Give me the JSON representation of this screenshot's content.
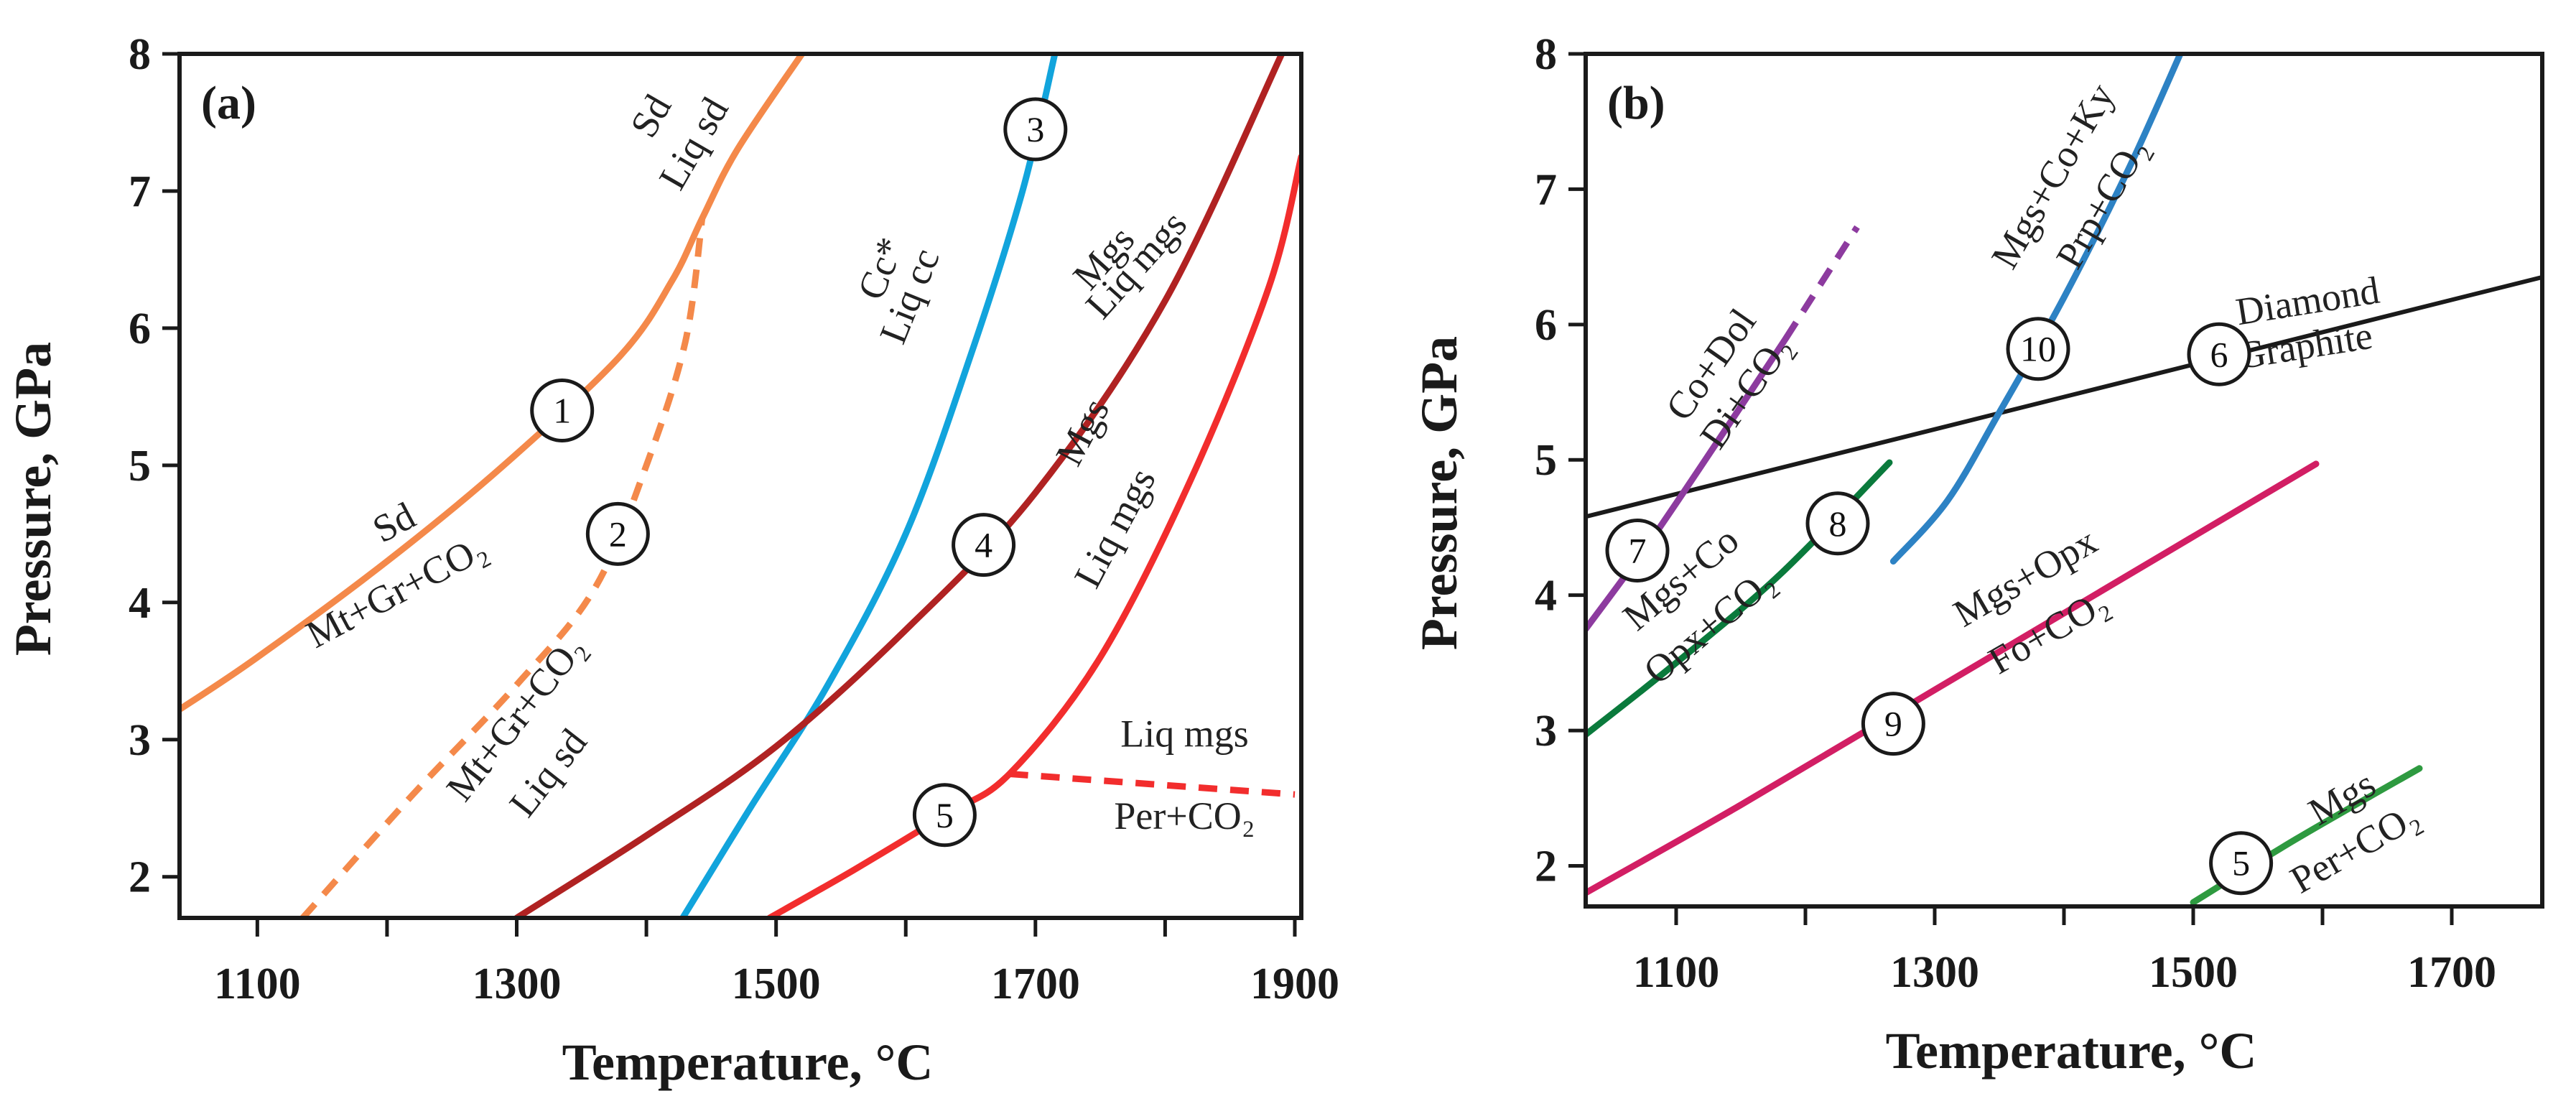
{
  "chart_data": [
    {
      "type": "line",
      "panel_label": "(a)",
      "xlabel": "Temperature, °C",
      "ylabel": "Pressure, GPa",
      "xlim": [
        1040,
        1905
      ],
      "ylim": [
        1.7,
        8
      ],
      "xticks": [
        1100,
        1300,
        1500,
        1700,
        1900
      ],
      "xticks_minor": [
        1200,
        1400,
        1600,
        1800
      ],
      "yticks": [
        2,
        3,
        4,
        5,
        6,
        7,
        8
      ],
      "grid": false,
      "series": [
        {
          "name": "Sd = Mt+Gr+CO2",
          "color": "#f4894a",
          "style": "solid",
          "points": [
            [
              1040,
              3.22
            ],
            [
              1100,
              3.6
            ],
            [
              1200,
              4.3
            ],
            [
              1290,
              5.0
            ],
            [
              1380,
              5.8
            ],
            [
              1420,
              6.35
            ],
            [
              1443,
              6.8
            ],
            [
              1470,
              7.3
            ],
            [
              1520,
              8.0
            ]
          ]
        },
        {
          "name": "Mt+Gr+CO2 = Liq sd",
          "color": "#f4894a",
          "style": "dashed",
          "points": [
            [
              1135,
              1.7
            ],
            [
              1220,
              2.6
            ],
            [
              1300,
              3.4
            ],
            [
              1360,
              4.1
            ],
            [
              1400,
              5.0
            ],
            [
              1430,
              5.9
            ],
            [
              1443,
              6.8
            ]
          ]
        },
        {
          "name": "Cc* = Liq cc",
          "color": "#12a4dc",
          "style": "solid",
          "points": [
            [
              1428,
              1.7
            ],
            [
              1480,
              2.5
            ],
            [
              1540,
              3.4
            ],
            [
              1600,
              4.5
            ],
            [
              1650,
              5.8
            ],
            [
              1690,
              7.0
            ],
            [
              1715,
              8.0
            ]
          ]
        },
        {
          "name": "Mgs = Liq mgs (4)",
          "color": "#b02222",
          "style": "solid",
          "points": [
            [
              1300,
              1.7
            ],
            [
              1400,
              2.3
            ],
            [
              1500,
              2.95
            ],
            [
              1600,
              3.8
            ],
            [
              1700,
              4.8
            ],
            [
              1800,
              6.2
            ],
            [
              1890,
              8.0
            ]
          ]
        },
        {
          "name": "Mgs = Liq mgs (5)",
          "color": "#f22d2d",
          "style": "solid",
          "points": [
            [
              1495,
              1.7
            ],
            [
              1560,
              2.05
            ],
            [
              1630,
              2.45
            ],
            [
              1680,
              2.75
            ],
            [
              1750,
              3.6
            ],
            [
              1820,
              4.9
            ],
            [
              1880,
              6.3
            ],
            [
              1905,
              7.25
            ]
          ]
        },
        {
          "name": "Liq mgs = Per+CO2",
          "color": "#f22d2d",
          "style": "dashed",
          "points": [
            [
              1680,
              2.75
            ],
            [
              1900,
              2.6
            ]
          ]
        }
      ],
      "labels": [
        {
          "text": "Sd",
          "x": 1210,
          "y": 4.5,
          "angle": -28
        },
        {
          "text": "Mt+Gr+CO₂",
          "x": 1212,
          "y": 4.0,
          "angle": -28
        },
        {
          "text": "Mt+Gr+CO₂",
          "x": 1307,
          "y": 3.1,
          "angle": -52
        },
        {
          "text": "Liq sd",
          "x": 1332,
          "y": 2.7,
          "angle": -52
        },
        {
          "text": "Sd",
          "x": 1412,
          "y": 7.5,
          "angle": -60
        },
        {
          "text": "Liq sd",
          "x": 1445,
          "y": 7.3,
          "angle": -60
        },
        {
          "text": "Cc*",
          "x": 1590,
          "y": 6.4,
          "angle": -68
        },
        {
          "text": "Liq cc",
          "x": 1612,
          "y": 6.2,
          "angle": -68
        },
        {
          "text": "Mgs",
          "x": 1760,
          "y": 6.45,
          "angle": -48
        },
        {
          "text": "Liq mgs",
          "x": 1785,
          "y": 6.4,
          "angle": -48
        },
        {
          "text": "Mgs",
          "x": 1745,
          "y": 5.2,
          "angle": -62
        },
        {
          "text": "Liq mgs",
          "x": 1770,
          "y": 4.5,
          "angle": -62
        },
        {
          "text": "Liq mgs",
          "x": 1815,
          "y": 2.95,
          "angle": 0
        },
        {
          "text": "Per+CO₂",
          "x": 1815,
          "y": 2.35,
          "angle": 0
        }
      ],
      "markers": [
        {
          "n": "1",
          "x": 1335,
          "y": 5.4
        },
        {
          "n": "2",
          "x": 1378,
          "y": 4.5
        },
        {
          "n": "3",
          "x": 1700,
          "y": 7.45
        },
        {
          "n": "4",
          "x": 1660,
          "y": 4.42
        },
        {
          "n": "5",
          "x": 1630,
          "y": 2.45
        }
      ]
    },
    {
      "type": "line",
      "panel_label": "(b)",
      "xlabel": "Temperature, °C",
      "ylabel": "Pressure, GPa",
      "xlim": [
        1030,
        1770
      ],
      "ylim": [
        1.7,
        8
      ],
      "xticks": [
        1100,
        1300,
        1500,
        1700
      ],
      "xticks_minor": [
        1200,
        1400,
        1600
      ],
      "yticks": [
        2,
        3,
        4,
        5,
        6,
        7,
        8
      ],
      "grid": false,
      "series": [
        {
          "name": "Diamond = Graphite",
          "color": "#1a1a1a",
          "style": "solid",
          "points": [
            [
              1030,
              4.58
            ],
            [
              1770,
              6.35
            ]
          ]
        },
        {
          "name": "Co+Dol = Di+CO2",
          "color": "#8d3b9f",
          "style": "solid",
          "points": [
            [
              1030,
              3.75
            ],
            [
              1080,
              4.4
            ],
            [
              1140,
              5.25
            ],
            [
              1185,
              5.9
            ]
          ]
        },
        {
          "name": "Co+Dol = Di+CO2 (extrapolated)",
          "color": "#8d3b9f",
          "style": "dashed",
          "points": [
            [
              1185,
              5.9
            ],
            [
              1240,
              6.72
            ]
          ]
        },
        {
          "name": "Mgs+Co = Opx+CO2",
          "color": "#0a7a3c",
          "style": "solid",
          "points": [
            [
              1030,
              2.97
            ],
            [
              1100,
              3.5
            ],
            [
              1180,
              4.15
            ],
            [
              1265,
              4.98
            ]
          ]
        },
        {
          "name": "Mgs+Opx = Fo+CO2",
          "color": "#d21e64",
          "style": "solid",
          "points": [
            [
              1030,
              1.8
            ],
            [
              1150,
              2.45
            ],
            [
              1300,
              3.3
            ],
            [
              1450,
              4.15
            ],
            [
              1595,
              4.97
            ]
          ]
        },
        {
          "name": "Mgs+Co+Ky = Prp+CO2",
          "color": "#2d82c4",
          "style": "solid",
          "points": [
            [
              1268,
              4.25
            ],
            [
              1310,
              4.7
            ],
            [
              1350,
              5.35
            ],
            [
              1400,
              6.2
            ],
            [
              1450,
              7.15
            ],
            [
              1490,
              8.0
            ]
          ]
        },
        {
          "name": "Mgs = Per+CO2",
          "color": "#2e9a40",
          "style": "solid",
          "points": [
            [
              1500,
              1.73
            ],
            [
              1580,
              2.2
            ],
            [
              1675,
              2.72
            ]
          ]
        }
      ],
      "labels": [
        {
          "text": "Diamond",
          "x": 1590,
          "y": 6.08,
          "angle": -9
        },
        {
          "text": "Graphite",
          "x": 1588,
          "y": 5.75,
          "angle": -9
        },
        {
          "text": "Co+Dol",
          "x": 1135,
          "y": 5.65,
          "angle": -55
        },
        {
          "text": "Di+CO₂",
          "x": 1162,
          "y": 5.45,
          "angle": -55
        },
        {
          "text": "Mgs+Co+Ky",
          "x": 1400,
          "y": 7.05,
          "angle": -60
        },
        {
          "text": "Prp+CO₂",
          "x": 1438,
          "y": 6.85,
          "angle": -60
        },
        {
          "text": "Mgs+Co",
          "x": 1110,
          "y": 4.05,
          "angle": -40
        },
        {
          "text": "Opx+CO₂",
          "x": 1132,
          "y": 3.7,
          "angle": -40
        },
        {
          "text": "Mgs+Opx",
          "x": 1375,
          "y": 4.05,
          "angle": -30
        },
        {
          "text": "Fo+CO₂",
          "x": 1393,
          "y": 3.65,
          "angle": -30
        },
        {
          "text": "Mgs",
          "x": 1620,
          "y": 2.42,
          "angle": -30
        },
        {
          "text": "Per+CO₂",
          "x": 1630,
          "y": 2.05,
          "angle": -30
        }
      ],
      "markers": [
        {
          "n": "6",
          "x": 1520,
          "y": 5.78
        },
        {
          "n": "7",
          "x": 1070,
          "y": 4.33
        },
        {
          "n": "8",
          "x": 1225,
          "y": 4.53
        },
        {
          "n": "9",
          "x": 1268,
          "y": 3.05
        },
        {
          "n": "10",
          "x": 1380,
          "y": 5.82
        },
        {
          "n": "5",
          "x": 1537,
          "y": 2.02
        }
      ]
    }
  ]
}
